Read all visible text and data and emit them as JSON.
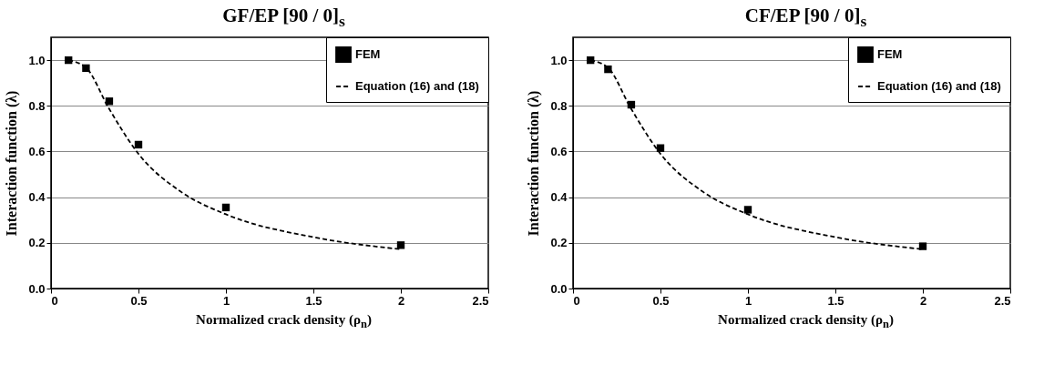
{
  "chart_data": [
    {
      "type": "scatter",
      "title": "GF/EP [90 / 0]$_{s}$",
      "xlabel": "Normalized crack density (ρ$_{n}$)",
      "ylabel": "Interaction function (λ)",
      "xlim": [
        0,
        2.5
      ],
      "ylim": [
        0,
        1.1
      ],
      "xticks": [
        0,
        0.5,
        1,
        1.5,
        2,
        2.5
      ],
      "yticks": [
        {
          "value": 0,
          "label": "0.0"
        },
        {
          "value": 0.2,
          "label": "0.2"
        },
        {
          "value": 0.4,
          "label": "0.4"
        },
        {
          "value": 0.6,
          "label": "0.6"
        },
        {
          "value": 0.8,
          "label": "0.8"
        },
        {
          "value": 1,
          "label": "1.0"
        }
      ],
      "grid": "y",
      "legend": "top right",
      "series": [
        {
          "name": "FEM",
          "marker": "square",
          "color": "#000000",
          "x": [
            0.1,
            0.2,
            0.333,
            0.5,
            1,
            2
          ],
          "values": [
            1.0,
            0.965,
            0.82,
            0.63,
            0.355,
            0.19
          ]
        },
        {
          "name": "Equation (16) and (18)",
          "type": "line",
          "line_style": "dashed",
          "color": "#000000",
          "x": [
            0.1,
            0.2,
            0.33,
            0.5,
            0.75,
            1,
            1.5,
            2
          ],
          "values": [
            1.0,
            0.967,
            0.79,
            0.59,
            0.42,
            0.325,
            0.225,
            0.172
          ]
        }
      ]
    },
    {
      "type": "scatter",
      "title": "CF/EP [90 / 0]$_{s}$",
      "xlabel": "Normalized crack density (ρ$_{n}$)",
      "ylabel": "Interaction function (λ)",
      "xlim": [
        0,
        2.5
      ],
      "ylim": [
        0,
        1.1
      ],
      "xticks": [
        0,
        0.5,
        1,
        1.5,
        2,
        2.5
      ],
      "yticks": [
        {
          "value": 0,
          "label": "0.0"
        },
        {
          "value": 0.2,
          "label": "0.2"
        },
        {
          "value": 0.4,
          "label": "0.4"
        },
        {
          "value": 0.6,
          "label": "0.6"
        },
        {
          "value": 0.8,
          "label": "0.8"
        },
        {
          "value": 1,
          "label": "1.0"
        }
      ],
      "grid": "y",
      "legend": "top right",
      "series": [
        {
          "name": "FEM",
          "marker": "square",
          "color": "#000000",
          "x": [
            0.1,
            0.2,
            0.333,
            0.5,
            1,
            2
          ],
          "values": [
            1.0,
            0.96,
            0.805,
            0.615,
            0.345,
            0.185
          ]
        },
        {
          "name": "Equation (16) and (18)",
          "type": "line",
          "line_style": "dashed",
          "color": "#000000",
          "x": [
            0.1,
            0.2,
            0.33,
            0.5,
            0.75,
            1,
            1.5,
            2
          ],
          "values": [
            1.0,
            0.967,
            0.79,
            0.59,
            0.42,
            0.325,
            0.225,
            0.172
          ]
        }
      ]
    }
  ]
}
